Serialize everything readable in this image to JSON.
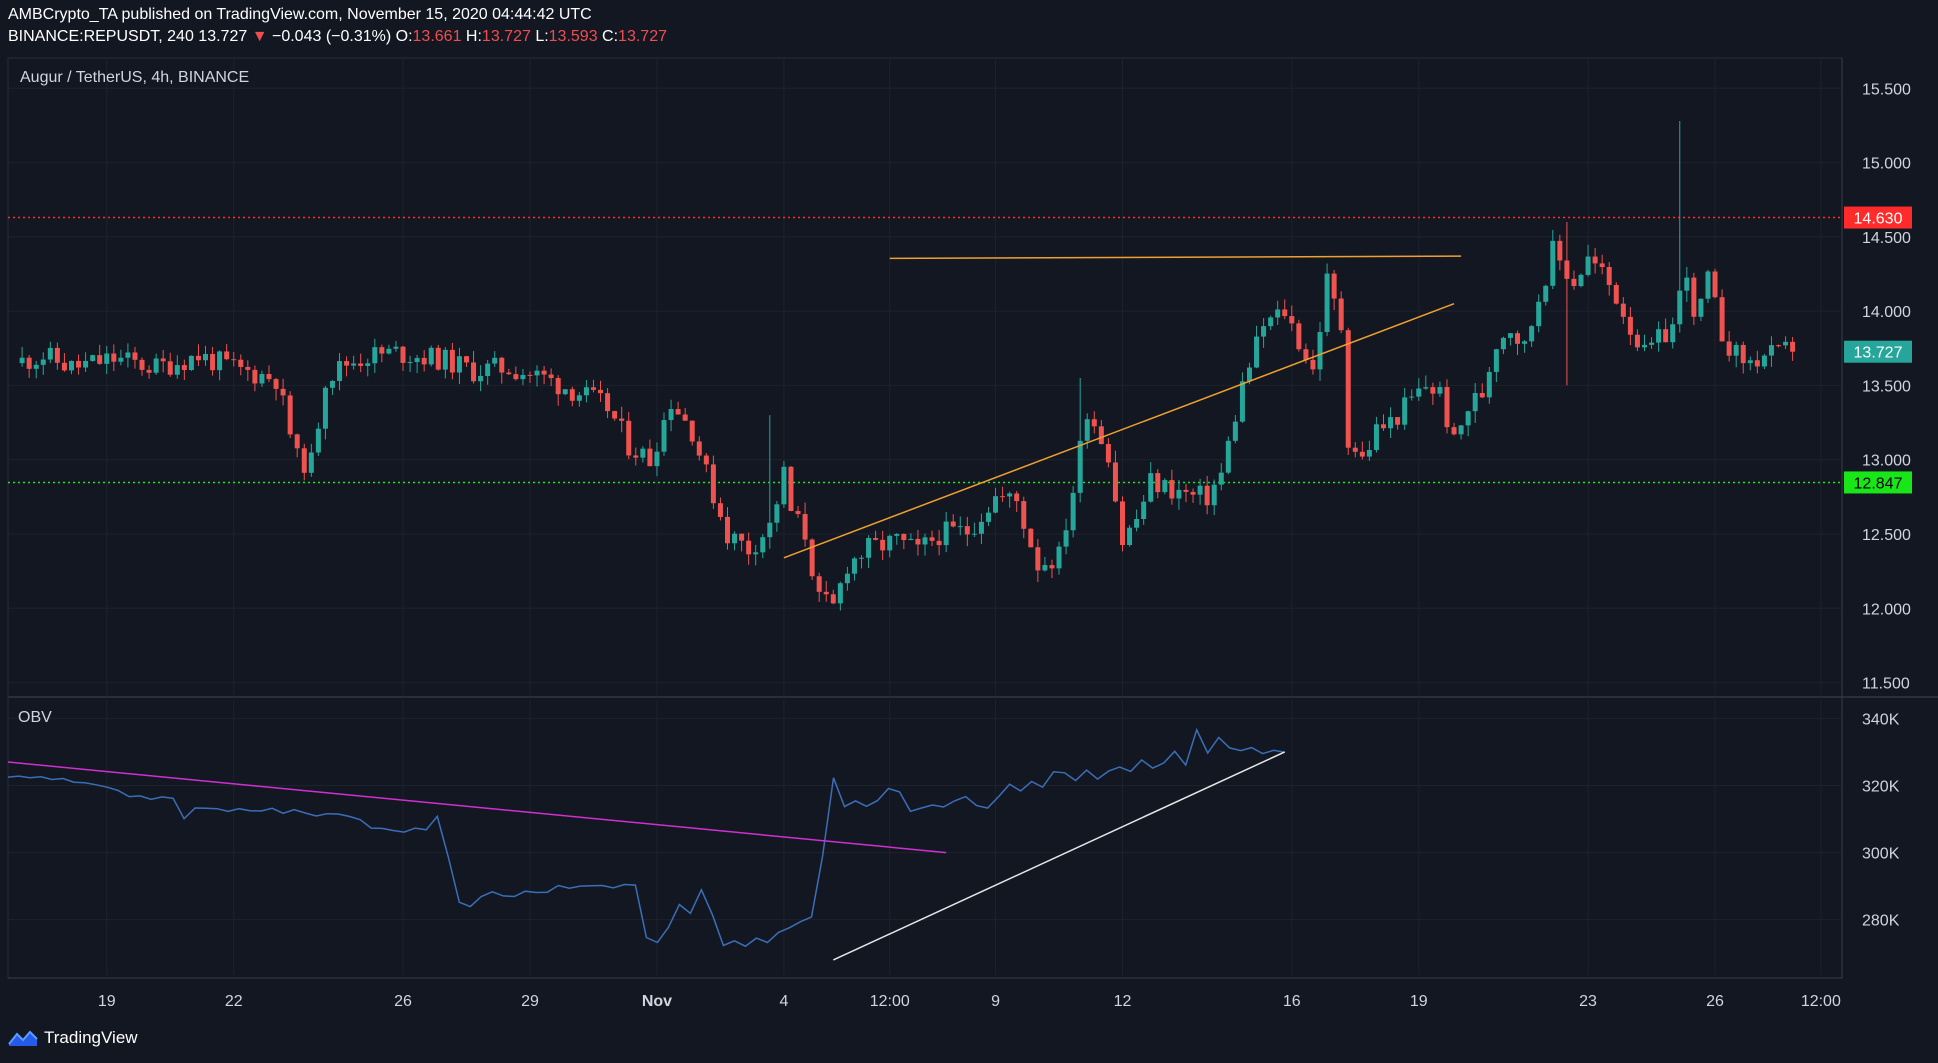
{
  "header": {
    "publisher": "AMBCrypto_TA published on TradingView.com, November 15, 2020 04:44:42 UTC",
    "symbol": "BINANCE:REPUSDT, 240",
    "last": "13.727",
    "arrow": "▼",
    "change": "−0.043 (−0.31%)",
    "o_label": "O:",
    "o_value": "13.661",
    "h_label": "H:",
    "h_value": "13.727",
    "l_label": "L:",
    "l_value": "13.593",
    "c_label": "C:",
    "c_value": "13.727"
  },
  "footer": {
    "brand": "TradingView"
  },
  "colors": {
    "background": "#131722",
    "up": "#26a69a",
    "down": "#ef5350",
    "resistance": "#ff2a2a",
    "support": "#19e619",
    "pattern": "#f0a030",
    "obv": "#3a6fb8",
    "obv_trend_down": "#d130d1",
    "obv_trend_up": "#e6e6e6"
  },
  "chart_data": [
    {
      "type": "candlestick",
      "title": "Augur / TetherUS, 4h, BINANCE",
      "y_axis_ticks": [
        "15.500",
        "15.000",
        "14.500",
        "14.000",
        "13.500",
        "13.000",
        "12.500",
        "12.000",
        "11.500"
      ],
      "ylim": [
        11.45,
        15.65
      ],
      "x_axis_ticks": [
        "19",
        "22",
        "26",
        "29",
        "Nov",
        "4",
        "12:00",
        "9",
        "12",
        "16",
        "19",
        "23",
        "26",
        "12:00"
      ],
      "x_tick_dates": [
        "2020-10-19",
        "2020-10-22",
        "2020-10-26",
        "2020-10-29",
        "2020-11-01",
        "2020-11-04",
        "2020-11-06 12:00",
        "2020-11-09",
        "2020-11-12",
        "2020-11-16",
        "2020-11-19",
        "2020-11-23",
        "2020-11-26",
        "2020-11-28 12:00"
      ],
      "x_range": [
        "2020-10-16 16:00",
        "2020-11-29 00:00"
      ],
      "grid": true,
      "price_lines": [
        {
          "name": "resistance",
          "value": 14.63,
          "label": "14.630",
          "style": "dotted"
        },
        {
          "name": "support",
          "value": 12.847,
          "label": "12.847",
          "style": "dotted"
        }
      ],
      "last_price_label": "13.727",
      "last_price": 13.727,
      "trendlines": [
        {
          "name": "triangle-top",
          "from": [
            "2020-11-06 12:00",
            14.355
          ],
          "to": [
            "2020-11-20 00:00",
            14.37
          ]
        },
        {
          "name": "triangle-bottom",
          "from": [
            "2020-11-04 00:00",
            12.34
          ],
          "to": [
            "2020-11-19 20:00",
            14.05
          ]
        }
      ],
      "candles_source": "4h OHLC series (approximate, read from chart shape)"
    },
    {
      "type": "line",
      "title": "OBV",
      "y_axis_ticks": [
        "340K",
        "320K",
        "300K",
        "280K"
      ],
      "ylim": [
        265000,
        344000
      ],
      "series": [
        {
          "values": [
            322500,
            322800,
            322300,
            322600,
            321800,
            322100,
            321000,
            320800,
            320200,
            319500,
            318500,
            316700,
            316900,
            315900,
            316600,
            316200,
            310100,
            313300,
            313200,
            313100,
            312300,
            313100,
            312500,
            312400,
            313200,
            311700,
            312800,
            311800,
            310900,
            311600,
            311500,
            310800,
            309800,
            307300,
            307200,
            306600,
            306100,
            307300,
            306800,
            310800,
            298700,
            285200,
            283900,
            286900,
            288300,
            287100,
            286900,
            288500,
            288100,
            288200,
            290200,
            289400,
            290000,
            290100,
            290200,
            289500,
            290500,
            290300,
            274700,
            273200,
            277700,
            284500,
            281900,
            288900,
            281500,
            272300,
            273700,
            272100,
            274500,
            273200,
            276200,
            277600,
            279400,
            280800,
            298800,
            322300,
            313700,
            315400,
            313800,
            315500,
            319100,
            318100,
            312300,
            313300,
            314200,
            313600,
            315400,
            316700,
            314000,
            313300,
            316700,
            320400,
            318400,
            321200,
            319500,
            324100,
            323800,
            321500,
            324600,
            321900,
            324300,
            325500,
            324200,
            327600,
            325200,
            326700,
            330200,
            326100,
            336600,
            329700,
            334300,
            331200,
            330400,
            331300,
            329500,
            330500,
            329900
          ]
        }
      ],
      "trendlines": [
        {
          "name": "obv-downtrend",
          "from": [
            "2020-10-16 16:00",
            327000
          ],
          "to": [
            "2020-11-07 20:00",
            300000
          ]
        },
        {
          "name": "obv-uptrend",
          "from": [
            "2020-11-05 04:00",
            268000
          ],
          "to": [
            "2020-11-15 20:00",
            330000
          ]
        }
      ]
    }
  ]
}
